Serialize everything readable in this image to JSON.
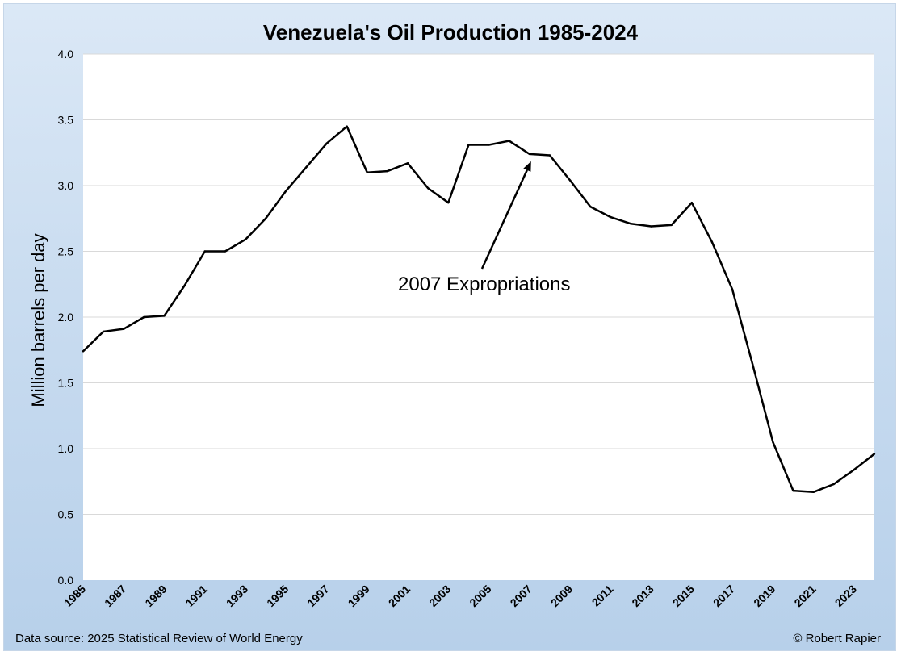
{
  "chart_data": {
    "type": "line",
    "title": "Venezuela's Oil Production 1985-2024",
    "xlabel": "",
    "ylabel": "Million barrels per day",
    "ylim": [
      0,
      4
    ],
    "yticks": [
      "0.0",
      "0.5",
      "1.0",
      "1.5",
      "2.0",
      "2.5",
      "3.0",
      "3.5",
      "4.0"
    ],
    "xlim": [
      1985,
      2024
    ],
    "xticks": [
      "1985",
      "1987",
      "1989",
      "1991",
      "1993",
      "1995",
      "1997",
      "1999",
      "2001",
      "2003",
      "2005",
      "2007",
      "2009",
      "2011",
      "2013",
      "2015",
      "2017",
      "2019",
      "2021",
      "2023"
    ],
    "grid": true,
    "series": [
      {
        "x": [
          1985,
          1986,
          1987,
          1988,
          1989,
          1990,
          1991,
          1992,
          1993,
          1994,
          1995,
          1996,
          1997,
          1998,
          1999,
          2000,
          2001,
          2002,
          2003,
          2004,
          2005,
          2006,
          2007,
          2008,
          2009,
          2010,
          2011,
          2012,
          2013,
          2014,
          2015,
          2016,
          2017,
          2018,
          2019,
          2020,
          2021,
          2022,
          2023,
          2024
        ],
        "values": [
          1.74,
          1.89,
          1.91,
          2.0,
          2.01,
          2.24,
          2.5,
          2.5,
          2.59,
          2.75,
          2.96,
          3.14,
          3.32,
          3.45,
          3.1,
          3.11,
          3.17,
          2.98,
          2.87,
          3.31,
          3.31,
          3.34,
          3.24,
          3.23,
          3.04,
          2.84,
          2.76,
          2.71,
          2.69,
          2.7,
          2.87,
          2.57,
          2.21,
          1.64,
          1.05,
          0.68,
          0.67,
          0.73,
          0.84,
          0.96
        ]
      }
    ],
    "annotations": [
      {
        "text": "2007 Expropriations",
        "x": 2007,
        "y": 3.24
      }
    ],
    "line_color": "#000000"
  },
  "footer": {
    "source": "Data source: 2025 Statistical Review of World Energy",
    "credit": "© Robert Rapier"
  }
}
